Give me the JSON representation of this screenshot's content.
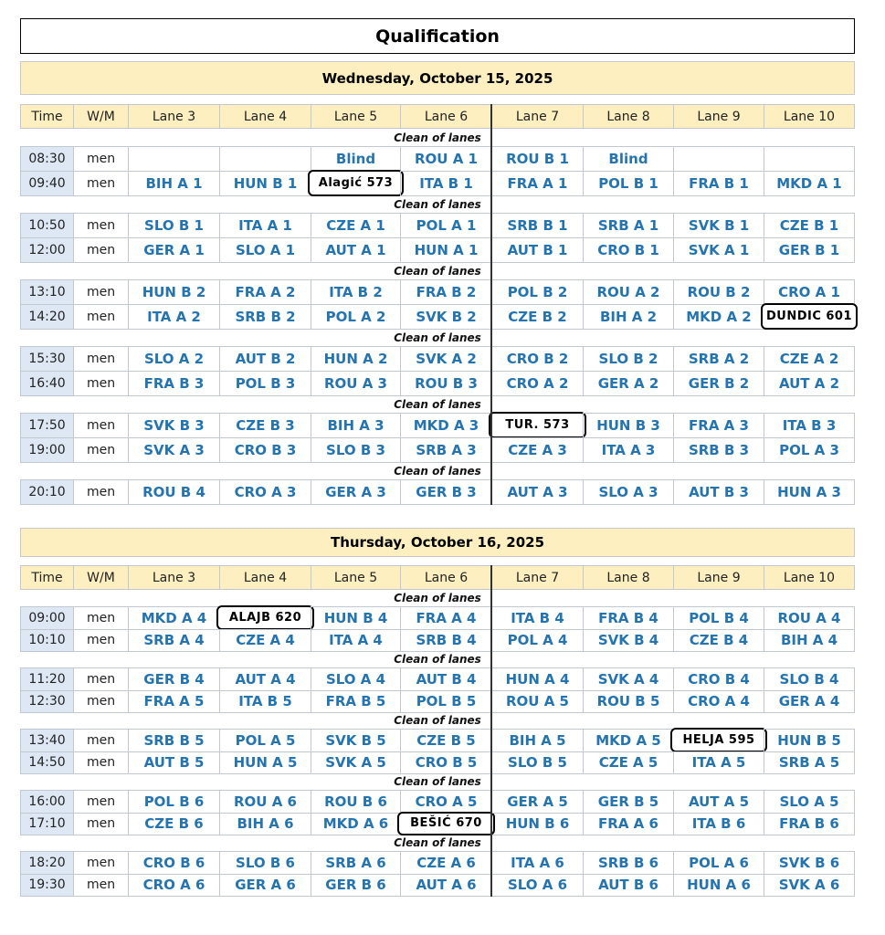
{
  "title": "Qualification",
  "days": [
    {
      "date": "Wednesday, October 15, 2025",
      "columns": [
        "Time",
        "W/M",
        "Lane 3",
        "Lane 4",
        "Lane 5",
        "Lane 6",
        "Lane 7",
        "Lane 8",
        "Lane 9",
        "Lane 10"
      ],
      "blocks": [
        {
          "separator": "Clean of lanes",
          "rows": [
            {
              "time": "08:30",
              "wm": "men",
              "lanes": [
                null,
                null,
                "Blind",
                "ROU A 1",
                "ROU B 1",
                "Blind",
                null,
                null
              ]
            },
            {
              "time": "09:40",
              "wm": "men",
              "lanes": [
                "BIH A 1",
                "HUN B 1",
                {
                  "text": "Alagić 573",
                  "boxed": true
                },
                "ITA B 1",
                "FRA A 1",
                "POL B 1",
                "FRA B 1",
                "MKD A 1"
              ]
            }
          ]
        },
        {
          "separator": "Clean of lanes",
          "rows": [
            {
              "time": "10:50",
              "wm": "men",
              "lanes": [
                "SLO B 1",
                "ITA A 1",
                "CZE A 1",
                "POL A 1",
                "SRB B 1",
                "SRB A 1",
                "SVK B 1",
                "CZE B 1"
              ]
            },
            {
              "time": "12:00",
              "wm": "men",
              "lanes": [
                "GER A 1",
                "SLO A 1",
                "AUT A 1",
                "HUN A 1",
                "AUT B 1",
                "CRO B 1",
                "SVK A 1",
                "GER B 1"
              ]
            }
          ]
        },
        {
          "separator": "Clean of lanes",
          "rows": [
            {
              "time": "13:10",
              "wm": "men",
              "lanes": [
                "HUN B 2",
                "FRA A 2",
                "ITA B 2",
                "FRA B 2",
                "POL B 2",
                "ROU A 2",
                "ROU B 2",
                "CRO A 1"
              ]
            },
            {
              "time": "14:20",
              "wm": "men",
              "lanes": [
                "ITA A 2",
                "SRB B 2",
                "POL A 2",
                "SVK B 2",
                "CZE B 2",
                "BIH A 2",
                "MKD A 2",
                {
                  "text": "DUNDIC 601",
                  "boxed": true
                }
              ]
            }
          ]
        },
        {
          "separator": "Clean of lanes",
          "rows": [
            {
              "time": "15:30",
              "wm": "men",
              "lanes": [
                "SLO A 2",
                "AUT B 2",
                "HUN A 2",
                "SVK A 2",
                "CRO B 2",
                "SLO B 2",
                "SRB A 2",
                "CZE A 2"
              ]
            },
            {
              "time": "16:40",
              "wm": "men",
              "lanes": [
                "FRA B 3",
                "POL B 3",
                "ROU A 3",
                "ROU B 3",
                "CRO A 2",
                "GER A 2",
                "GER B 2",
                "AUT A 2"
              ]
            }
          ]
        },
        {
          "separator": "Clean of lanes",
          "rows": [
            {
              "time": "17:50",
              "wm": "men",
              "lanes": [
                "SVK B 3",
                "CZE B 3",
                "BIH A 3",
                "MKD A 3",
                {
                  "text": "TUR. 573",
                  "boxed": true
                },
                "HUN B 3",
                "FRA A 3",
                "ITA B 3"
              ]
            },
            {
              "time": "19:00",
              "wm": "men",
              "lanes": [
                "SVK A 3",
                "CRO B 3",
                "SLO B 3",
                "SRB A 3",
                "CZE A 3",
                "ITA A 3",
                "SRB B 3",
                "POL A 3"
              ]
            }
          ]
        },
        {
          "separator": "Clean of lanes",
          "rows": [
            {
              "time": "20:10",
              "wm": "men",
              "lanes": [
                "ROU B 4",
                "CRO A 3",
                "GER A 3",
                "GER B 3",
                "AUT A 3",
                "SLO A 3",
                "AUT B 3",
                "HUN A 3"
              ]
            }
          ]
        }
      ]
    },
    {
      "date": "Thursday, October 16, 2025",
      "columns": [
        "Time",
        "W/M",
        "Lane 3",
        "Lane 4",
        "Lane 5",
        "Lane 6",
        "Lane 7",
        "Lane 8",
        "Lane 9",
        "Lane 10"
      ],
      "blocks": [
        {
          "separator": "Clean of lanes",
          "rows": [
            {
              "time": "09:00",
              "wm": "men",
              "lanes": [
                "MKD A 4",
                {
                  "text": "ALAJB 620",
                  "boxed": true
                },
                "HUN B 4",
                "FRA A 4",
                "ITA B 4",
                "FRA B 4",
                "POL B 4",
                "ROU A 4"
              ]
            },
            {
              "time": "10:10",
              "wm": "men",
              "lanes": [
                "SRB A 4",
                "CZE A 4",
                "ITA A 4",
                "SRB B 4",
                "POL A 4",
                "SVK B 4",
                "CZE B 4",
                "BIH A 4"
              ]
            }
          ]
        },
        {
          "separator": "Clean of lanes",
          "rows": [
            {
              "time": "11:20",
              "wm": "men",
              "lanes": [
                "GER B 4",
                "AUT A 4",
                "SLO A 4",
                "AUT B 4",
                "HUN A 4",
                "SVK A 4",
                "CRO B 4",
                "SLO B 4"
              ]
            },
            {
              "time": "12:30",
              "wm": "men",
              "lanes": [
                "FRA A 5",
                "ITA B 5",
                "FRA B 5",
                "POL B 5",
                "ROU A 5",
                "ROU B 5",
                "CRO A 4",
                "GER A 4"
              ]
            }
          ]
        },
        {
          "separator": "Clean of lanes",
          "rows": [
            {
              "time": "13:40",
              "wm": "men",
              "lanes": [
                "SRB B 5",
                "POL A 5",
                "SVK B 5",
                "CZE B 5",
                "BIH A 5",
                "MKD A 5",
                {
                  "text": "HELJA 595",
                  "boxed": true
                },
                "HUN B 5"
              ]
            },
            {
              "time": "14:50",
              "wm": "men",
              "lanes": [
                "AUT B 5",
                "HUN A 5",
                "SVK A 5",
                "CRO B 5",
                "SLO B 5",
                "CZE A 5",
                "ITA A 5",
                "SRB A 5"
              ]
            }
          ]
        },
        {
          "separator": "Clean of lanes",
          "rows": [
            {
              "time": "16:00",
              "wm": "men",
              "lanes": [
                "POL B 6",
                "ROU A 6",
                "ROU B 6",
                "CRO A 5",
                "GER A 5",
                "GER B 5",
                "AUT A 5",
                "SLO A 5"
              ]
            },
            {
              "time": "17:10",
              "wm": "men",
              "lanes": [
                "CZE B 6",
                "BIH A 6",
                "MKD A 6",
                {
                  "text": "BEŠIĆ 670",
                  "boxed": true
                },
                "HUN B 6",
                "FRA A 6",
                "ITA B 6",
                "FRA B 6"
              ]
            }
          ]
        },
        {
          "separator": "Clean of lanes",
          "rows": [
            {
              "time": "18:20",
              "wm": "men",
              "lanes": [
                "CRO B 6",
                "SLO B 6",
                "SRB A 6",
                "CZE A 6",
                "ITA A 6",
                "SRB B 6",
                "POL A 6",
                "SVK B 6"
              ]
            },
            {
              "time": "19:30",
              "wm": "men",
              "lanes": [
                "CRO A 6",
                "GER A 6",
                "GER B 6",
                "AUT A 6",
                "SLO A 6",
                "AUT B 6",
                "HUN A 6",
                "SVK A 6"
              ]
            }
          ]
        }
      ]
    }
  ]
}
